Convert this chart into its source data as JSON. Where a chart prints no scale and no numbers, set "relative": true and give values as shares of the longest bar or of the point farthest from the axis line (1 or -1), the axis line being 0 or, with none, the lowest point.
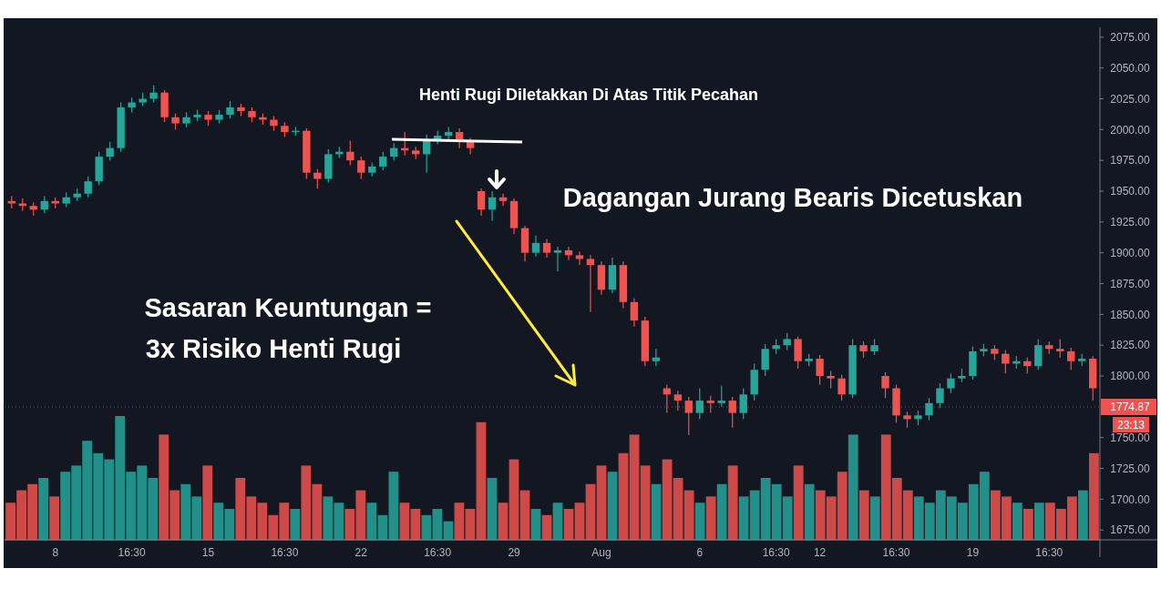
{
  "chart_data": [
    {
      "type": "candlestick",
      "categories": [
        null,
        null,
        null,
        null,
        "8",
        null,
        null,
        null,
        null,
        null,
        null,
        "16:30",
        null,
        null,
        null,
        null,
        null,
        null,
        "15",
        null,
        null,
        null,
        null,
        null,
        null,
        "16:30",
        null,
        null,
        null,
        null,
        null,
        null,
        "22",
        null,
        null,
        null,
        null,
        null,
        null,
        "16:30",
        null,
        null,
        null,
        null,
        null,
        null,
        "29",
        null,
        null,
        null,
        null,
        null,
        null,
        null,
        "Aug",
        null,
        null,
        null,
        null,
        null,
        null,
        null,
        null,
        "6",
        null,
        null,
        null,
        null,
        null,
        null,
        "16:30",
        null,
        null,
        null,
        "12",
        null,
        null,
        null,
        null,
        null,
        null,
        "16:30",
        null,
        null,
        null,
        null,
        null,
        null,
        "19",
        null,
        null,
        null,
        null,
        null,
        null,
        "16:30",
        null,
        null,
        null,
        null
      ],
      "ohlc": [
        [
          1942,
          1946,
          1936,
          1940
        ],
        [
          1940,
          1944,
          1934,
          1938
        ],
        [
          1938,
          1941,
          1930,
          1935
        ],
        [
          1935,
          1946,
          1932,
          1942
        ],
        [
          1942,
          1945,
          1936,
          1940
        ],
        [
          1940,
          1949,
          1937,
          1945
        ],
        [
          1945,
          1952,
          1942,
          1948
        ],
        [
          1948,
          1962,
          1945,
          1958
        ],
        [
          1958,
          1982,
          1955,
          1978
        ],
        [
          1978,
          1990,
          1975,
          1985
        ],
        [
          1985,
          2022,
          1982,
          2018
        ],
        [
          2018,
          2026,
          2014,
          2022
        ],
        [
          2022,
          2030,
          2019,
          2025
        ],
        [
          2025,
          2036,
          2022,
          2030
        ],
        [
          2030,
          2032,
          2006,
          2010
        ],
        [
          2010,
          2013,
          2000,
          2005
        ],
        [
          2005,
          2014,
          2002,
          2010
        ],
        [
          2010,
          2016,
          2007,
          2012
        ],
        [
          2012,
          2015,
          2003,
          2008
        ],
        [
          2008,
          2016,
          2005,
          2012
        ],
        [
          2012,
          2023,
          2009,
          2018
        ],
        [
          2018,
          2021,
          2011,
          2015
        ],
        [
          2015,
          2018,
          2006,
          2010
        ],
        [
          2010,
          2013,
          2004,
          2008
        ],
        [
          2008,
          2011,
          1999,
          2003
        ],
        [
          2003,
          2006,
          1994,
          1998
        ],
        [
          1998,
          2002,
          1995,
          1999
        ],
        [
          1999,
          2001,
          1960,
          1965
        ],
        [
          1965,
          1968,
          1952,
          1960
        ],
        [
          1960,
          1984,
          1957,
          1980
        ],
        [
          1980,
          1986,
          1977,
          1982
        ],
        [
          1982,
          1991,
          1971,
          1975
        ],
        [
          1975,
          1978,
          1960,
          1965
        ],
        [
          1965,
          1973,
          1962,
          1970
        ],
        [
          1970,
          1982,
          1967,
          1978
        ],
        [
          1978,
          1989,
          1975,
          1985
        ],
        [
          1985,
          1998,
          1979,
          1983
        ],
        [
          1983,
          1986,
          1976,
          1980
        ],
        [
          1980,
          1996,
          1965,
          1992
        ],
        [
          1992,
          1999,
          1988,
          1995
        ],
        [
          1995,
          2002,
          1992,
          1998
        ],
        [
          1998,
          2001,
          1985,
          1990
        ],
        [
          1990,
          1993,
          1980,
          1985
        ],
        [
          1950,
          1952,
          1930,
          1935
        ],
        [
          1935,
          1950,
          1926,
          1945
        ],
        [
          1945,
          1948,
          1938,
          1942
        ],
        [
          1942,
          1944,
          1915,
          1920
        ],
        [
          1920,
          1922,
          1893,
          1900
        ],
        [
          1900,
          1914,
          1897,
          1908
        ],
        [
          1908,
          1911,
          1896,
          1900
        ],
        [
          1900,
          1905,
          1885,
          1902
        ],
        [
          1902,
          1905,
          1894,
          1898
        ],
        [
          1898,
          1901,
          1890,
          1895
        ],
        [
          1895,
          1898,
          1852,
          1890
        ],
        [
          1890,
          1893,
          1866,
          1870
        ],
        [
          1870,
          1896,
          1867,
          1890
        ],
        [
          1890,
          1893,
          1855,
          1860
        ],
        [
          1860,
          1863,
          1840,
          1845
        ],
        [
          1845,
          1848,
          1808,
          1812
        ],
        [
          1812,
          1822,
          1808,
          1815
        ],
        [
          1790,
          1793,
          1770,
          1785
        ],
        [
          1785,
          1788,
          1772,
          1780
        ],
        [
          1780,
          1783,
          1752,
          1770
        ],
        [
          1770,
          1790,
          1765,
          1780
        ],
        [
          1780,
          1784,
          1770,
          1778
        ],
        [
          1778,
          1792,
          1775,
          1780
        ],
        [
          1780,
          1783,
          1758,
          1770
        ],
        [
          1770,
          1790,
          1765,
          1785
        ],
        [
          1785,
          1810,
          1780,
          1805
        ],
        [
          1805,
          1826,
          1800,
          1822
        ],
        [
          1822,
          1830,
          1818,
          1825
        ],
        [
          1825,
          1835,
          1821,
          1830
        ],
        [
          1830,
          1832,
          1806,
          1812
        ],
        [
          1812,
          1818,
          1808,
          1814
        ],
        [
          1814,
          1817,
          1793,
          1800
        ],
        [
          1800,
          1804,
          1790,
          1798
        ],
        [
          1798,
          1801,
          1780,
          1785
        ],
        [
          1785,
          1830,
          1782,
          1825
        ],
        [
          1825,
          1828,
          1815,
          1820
        ],
        [
          1820,
          1830,
          1817,
          1825
        ],
        [
          1800,
          1803,
          1782,
          1790
        ],
        [
          1790,
          1793,
          1762,
          1768
        ],
        [
          1768,
          1771,
          1758,
          1765
        ],
        [
          1765,
          1772,
          1760,
          1768
        ],
        [
          1768,
          1782,
          1764,
          1778
        ],
        [
          1778,
          1794,
          1774,
          1790
        ],
        [
          1790,
          1802,
          1786,
          1798
        ],
        [
          1798,
          1806,
          1795,
          1800
        ],
        [
          1800,
          1824,
          1797,
          1820
        ],
        [
          1820,
          1826,
          1816,
          1822
        ],
        [
          1822,
          1825,
          1813,
          1818
        ],
        [
          1818,
          1821,
          1802,
          1810
        ],
        [
          1810,
          1816,
          1806,
          1812
        ],
        [
          1812,
          1815,
          1802,
          1808
        ],
        [
          1808,
          1830,
          1805,
          1825
        ],
        [
          1825,
          1828,
          1818,
          1822
        ],
        [
          1822,
          1830,
          1815,
          1820
        ],
        [
          1820,
          1823,
          1805,
          1812
        ],
        [
          1812,
          1818,
          1808,
          1814
        ],
        [
          1814,
          1816,
          1780,
          1790
        ]
      ],
      "ylim": [
        1667,
        2083
      ],
      "yticks": [
        {
          "value": 1675,
          "label": "1675.00"
        },
        {
          "value": 1700,
          "label": "1700.00"
        },
        {
          "value": 1725,
          "label": "1725.00"
        },
        {
          "value": 1750,
          "label": "1750.00"
        },
        {
          "value": 1800,
          "label": "1800.00"
        },
        {
          "value": 1825,
          "label": "1825.00"
        },
        {
          "value": 1850,
          "label": "1850.00"
        },
        {
          "value": 1875,
          "label": "1875.00"
        },
        {
          "value": 1900,
          "label": "1900.00"
        },
        {
          "value": 1925,
          "label": "1925.00"
        },
        {
          "value": 1950,
          "label": "1950.00"
        },
        {
          "value": 1975,
          "label": "1975.00"
        },
        {
          "value": 2000,
          "label": "2000.00"
        },
        {
          "value": 2025,
          "label": "2025.00"
        },
        {
          "value": 2050,
          "label": "2050.00"
        },
        {
          "value": 2075,
          "label": "2075.00"
        }
      ],
      "ref_lines": [
        {
          "axis": "y",
          "value": 1774.87,
          "label": "1774.87",
          "color": "#ef5350"
        }
      ],
      "annotations": [
        "Henti Rugi Diletakkan Di Atas Titik Pecahan",
        "Dagangan Jurang Bearis Dicetuskan",
        "Sasaran Keuntungan =",
        "3x Risiko Henti Rugi",
        "23:13"
      ]
    },
    {
      "type": "bar",
      "relative": true,
      "categories": [
        null,
        null,
        null,
        null,
        null,
        null,
        null,
        null,
        null,
        null,
        null,
        null,
        null,
        null,
        null,
        null,
        null,
        null,
        null,
        null,
        null,
        null,
        null,
        null,
        null,
        null,
        null,
        null,
        null,
        null,
        null,
        null,
        null,
        null,
        null,
        null,
        null,
        null,
        null,
        null,
        null,
        null,
        null,
        null,
        null,
        null,
        null,
        null,
        null,
        null,
        null,
        null,
        null,
        null,
        null,
        null,
        null,
        null,
        null,
        null,
        null,
        null,
        null,
        null,
        null,
        null,
        null,
        null,
        null,
        null,
        null,
        null,
        null,
        null,
        null,
        null,
        null,
        null,
        null,
        null,
        null,
        null,
        null,
        null,
        null,
        null,
        null,
        null,
        null,
        null,
        null,
        null,
        null,
        null,
        null,
        null,
        null,
        null,
        null,
        null
      ],
      "values": [
        0.3,
        0.4,
        0.45,
        0.5,
        0.35,
        0.55,
        0.6,
        0.8,
        0.7,
        0.65,
        1.0,
        0.55,
        0.6,
        0.5,
        0.85,
        0.4,
        0.45,
        0.35,
        0.6,
        0.3,
        0.25,
        0.5,
        0.35,
        0.3,
        0.2,
        0.3,
        0.25,
        0.6,
        0.45,
        0.35,
        0.3,
        0.25,
        0.4,
        0.3,
        0.2,
        0.55,
        0.3,
        0.25,
        0.2,
        0.25,
        0.15,
        0.3,
        0.25,
        0.95,
        0.5,
        0.3,
        0.65,
        0.4,
        0.25,
        0.2,
        0.3,
        0.25,
        0.3,
        0.45,
        0.6,
        0.55,
        0.7,
        0.85,
        0.6,
        0.45,
        0.65,
        0.5,
        0.4,
        0.3,
        0.35,
        0.45,
        0.6,
        0.35,
        0.4,
        0.5,
        0.45,
        0.35,
        0.6,
        0.45,
        0.4,
        0.35,
        0.55,
        0.85,
        0.4,
        0.35,
        0.85,
        0.5,
        0.4,
        0.35,
        0.3,
        0.4,
        0.35,
        0.3,
        0.45,
        0.55,
        0.4,
        0.35,
        0.3,
        0.25,
        0.3,
        0.3,
        0.25,
        0.35,
        0.4,
        0.7
      ],
      "colors": [
        "#ef5350",
        "#ef5350",
        "#ef5350",
        "#26a69a",
        "#ef5350",
        "#26a69a",
        "#26a69a",
        "#26a69a",
        "#26a69a",
        "#26a69a",
        "#26a69a",
        "#26a69a",
        "#26a69a",
        "#26a69a",
        "#ef5350",
        "#ef5350",
        "#26a69a",
        "#26a69a",
        "#ef5350",
        "#26a69a",
        "#26a69a",
        "#ef5350",
        "#ef5350",
        "#ef5350",
        "#ef5350",
        "#ef5350",
        "#26a69a",
        "#ef5350",
        "#ef5350",
        "#26a69a",
        "#26a69a",
        "#ef5350",
        "#ef5350",
        "#26a69a",
        "#26a69a",
        "#26a69a",
        "#ef5350",
        "#ef5350",
        "#26a69a",
        "#26a69a",
        "#26a69a",
        "#ef5350",
        "#ef5350",
        "#ef5350",
        "#26a69a",
        "#ef5350",
        "#ef5350",
        "#ef5350",
        "#26a69a",
        "#ef5350",
        "#26a69a",
        "#ef5350",
        "#ef5350",
        "#ef5350",
        "#ef5350",
        "#26a69a",
        "#ef5350",
        "#ef5350",
        "#ef5350",
        "#26a69a",
        "#ef5350",
        "#ef5350",
        "#ef5350",
        "#26a69a",
        "#ef5350",
        "#26a69a",
        "#ef5350",
        "#26a69a",
        "#26a69a",
        "#26a69a",
        "#26a69a",
        "#26a69a",
        "#ef5350",
        "#26a69a",
        "#ef5350",
        "#ef5350",
        "#ef5350",
        "#26a69a",
        "#ef5350",
        "#26a69a",
        "#ef5350",
        "#ef5350",
        "#ef5350",
        "#26a69a",
        "#26a69a",
        "#26a69a",
        "#26a69a",
        "#26a69a",
        "#26a69a",
        "#26a69a",
        "#ef5350",
        "#ef5350",
        "#26a69a",
        "#ef5350",
        "#26a69a",
        "#ef5350",
        "#ef5350",
        "#ef5350",
        "#26a69a",
        "#ef5350"
      ]
    }
  ]
}
